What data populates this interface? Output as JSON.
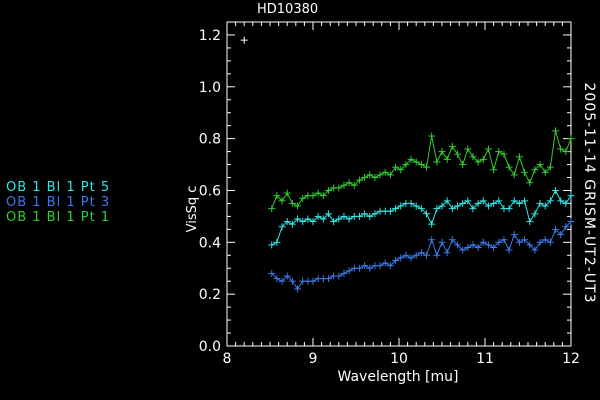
{
  "chart_data": {
    "type": "line",
    "title": "HD10380",
    "side_label": "2005-11-14 GRISM-UT2-UT3",
    "xlabel": "Wavelength [mu]",
    "ylabel": "VisSq c",
    "xlim": [
      8,
      12
    ],
    "ylim": [
      0,
      1.25
    ],
    "x_ticks": [
      "8",
      "9",
      "10",
      "11",
      "12"
    ],
    "y_ticks": [
      "0.0",
      "0.2",
      "0.4",
      "0.6",
      "0.8",
      "1.0",
      "1.2"
    ],
    "grid": false,
    "legend_position": "left",
    "isolated_point": {
      "x": 8.2,
      "y": 1.18
    },
    "series": [
      {
        "name": "OB 1 Bl 1 Pt 5",
        "color": "#33e6e6",
        "x": [
          8.52,
          8.58,
          8.64,
          8.7,
          8.76,
          8.82,
          8.88,
          8.94,
          9.0,
          9.06,
          9.12,
          9.18,
          9.24,
          9.3,
          9.36,
          9.42,
          9.48,
          9.54,
          9.6,
          9.66,
          9.72,
          9.78,
          9.84,
          9.9,
          9.96,
          10.02,
          10.08,
          10.14,
          10.2,
          10.26,
          10.32,
          10.38,
          10.44,
          10.5,
          10.56,
          10.62,
          10.68,
          10.74,
          10.8,
          10.86,
          10.92,
          10.98,
          11.04,
          11.1,
          11.16,
          11.22,
          11.28,
          11.34,
          11.4,
          11.46,
          11.52,
          11.58,
          11.64,
          11.7,
          11.76,
          11.82,
          11.88,
          11.94,
          12.0
        ],
        "values": [
          0.39,
          0.4,
          0.46,
          0.48,
          0.47,
          0.49,
          0.48,
          0.49,
          0.48,
          0.5,
          0.49,
          0.51,
          0.48,
          0.49,
          0.5,
          0.49,
          0.5,
          0.5,
          0.51,
          0.5,
          0.51,
          0.52,
          0.52,
          0.52,
          0.53,
          0.54,
          0.55,
          0.55,
          0.54,
          0.53,
          0.51,
          0.47,
          0.53,
          0.54,
          0.56,
          0.53,
          0.54,
          0.55,
          0.56,
          0.53,
          0.55,
          0.56,
          0.54,
          0.55,
          0.56,
          0.53,
          0.53,
          0.56,
          0.55,
          0.56,
          0.48,
          0.51,
          0.55,
          0.54,
          0.56,
          0.6,
          0.56,
          0.55,
          0.58
        ]
      },
      {
        "name": "OB 1 Bl 1 Pt 3",
        "color": "#3c78e6",
        "x": [
          8.52,
          8.58,
          8.64,
          8.7,
          8.76,
          8.82,
          8.88,
          8.94,
          9.0,
          9.06,
          9.12,
          9.18,
          9.24,
          9.3,
          9.36,
          9.42,
          9.48,
          9.54,
          9.6,
          9.66,
          9.72,
          9.78,
          9.84,
          9.9,
          9.96,
          10.02,
          10.08,
          10.14,
          10.2,
          10.26,
          10.32,
          10.38,
          10.44,
          10.5,
          10.56,
          10.62,
          10.68,
          10.74,
          10.8,
          10.86,
          10.92,
          10.98,
          11.04,
          11.1,
          11.16,
          11.22,
          11.28,
          11.34,
          11.4,
          11.46,
          11.52,
          11.58,
          11.64,
          11.7,
          11.76,
          11.82,
          11.88,
          11.94,
          12.0
        ],
        "values": [
          0.28,
          0.26,
          0.25,
          0.27,
          0.25,
          0.22,
          0.25,
          0.25,
          0.25,
          0.26,
          0.26,
          0.26,
          0.27,
          0.27,
          0.28,
          0.29,
          0.3,
          0.3,
          0.31,
          0.3,
          0.31,
          0.31,
          0.32,
          0.31,
          0.33,
          0.34,
          0.35,
          0.34,
          0.35,
          0.36,
          0.35,
          0.41,
          0.35,
          0.4,
          0.36,
          0.41,
          0.39,
          0.37,
          0.38,
          0.39,
          0.38,
          0.4,
          0.39,
          0.38,
          0.4,
          0.41,
          0.37,
          0.43,
          0.4,
          0.41,
          0.39,
          0.37,
          0.4,
          0.41,
          0.4,
          0.45,
          0.43,
          0.46,
          0.48
        ]
      },
      {
        "name": "OB 1 Bl 1 Pt 1",
        "color": "#33cc33",
        "x": [
          8.52,
          8.58,
          8.64,
          8.7,
          8.76,
          8.82,
          8.88,
          8.94,
          9.0,
          9.06,
          9.12,
          9.18,
          9.24,
          9.3,
          9.36,
          9.42,
          9.48,
          9.54,
          9.6,
          9.66,
          9.72,
          9.78,
          9.84,
          9.9,
          9.96,
          10.02,
          10.08,
          10.14,
          10.2,
          10.26,
          10.32,
          10.38,
          10.44,
          10.5,
          10.56,
          10.62,
          10.68,
          10.74,
          10.8,
          10.86,
          10.92,
          10.98,
          11.04,
          11.1,
          11.16,
          11.22,
          11.28,
          11.34,
          11.4,
          11.46,
          11.52,
          11.58,
          11.64,
          11.7,
          11.76,
          11.82,
          11.88,
          11.94,
          12.0
        ],
        "values": [
          0.53,
          0.58,
          0.56,
          0.59,
          0.55,
          0.54,
          0.57,
          0.58,
          0.58,
          0.59,
          0.58,
          0.6,
          0.61,
          0.61,
          0.62,
          0.63,
          0.62,
          0.64,
          0.65,
          0.66,
          0.65,
          0.66,
          0.67,
          0.66,
          0.69,
          0.68,
          0.7,
          0.72,
          0.71,
          0.7,
          0.69,
          0.81,
          0.71,
          0.75,
          0.72,
          0.77,
          0.74,
          0.7,
          0.76,
          0.73,
          0.71,
          0.72,
          0.76,
          0.68,
          0.75,
          0.74,
          0.69,
          0.66,
          0.73,
          0.67,
          0.63,
          0.68,
          0.7,
          0.67,
          0.69,
          0.83,
          0.76,
          0.75,
          0.8
        ]
      }
    ]
  }
}
